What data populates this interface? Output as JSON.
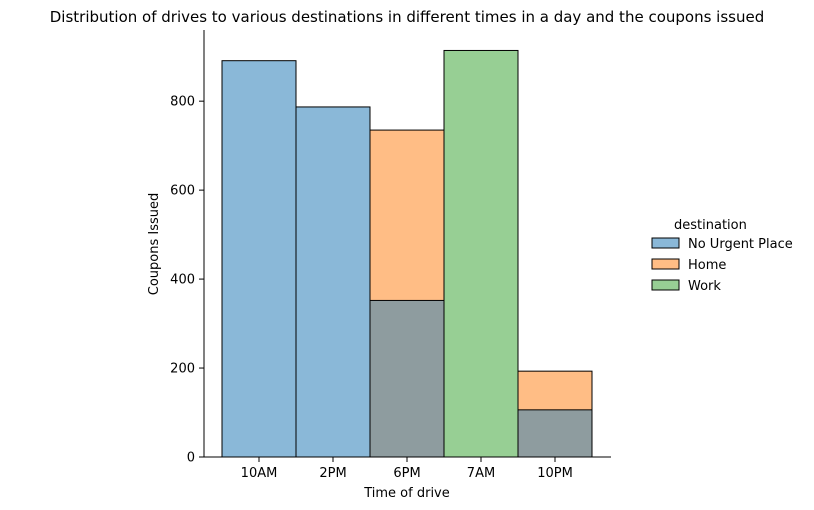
{
  "chart_data": {
    "type": "bar",
    "title": "Distribution of drives to various destinations in different times in a day and the coupons issued",
    "xlabel": "Time of drive",
    "ylabel": "Coupons Issued",
    "categories": [
      "10AM",
      "2PM",
      "6PM",
      "7AM",
      "10PM"
    ],
    "ylim": [
      0,
      960
    ],
    "yticks": [
      0,
      200,
      400,
      600,
      800
    ],
    "grid": false,
    "legend_placement": "right",
    "legend_title": "destination",
    "overlap_color": "#8e9c9f",
    "series": [
      {
        "name": "No Urgent Place",
        "color": "#8ab8d8",
        "values": [
          891,
          787,
          352,
          0,
          106
        ]
      },
      {
        "name": "Home",
        "color": "#ffbd85",
        "values": [
          0,
          0,
          735,
          0,
          193
        ]
      },
      {
        "name": "Work",
        "color": "#97cf94",
        "values": [
          0,
          0,
          0,
          914,
          0
        ]
      }
    ]
  }
}
